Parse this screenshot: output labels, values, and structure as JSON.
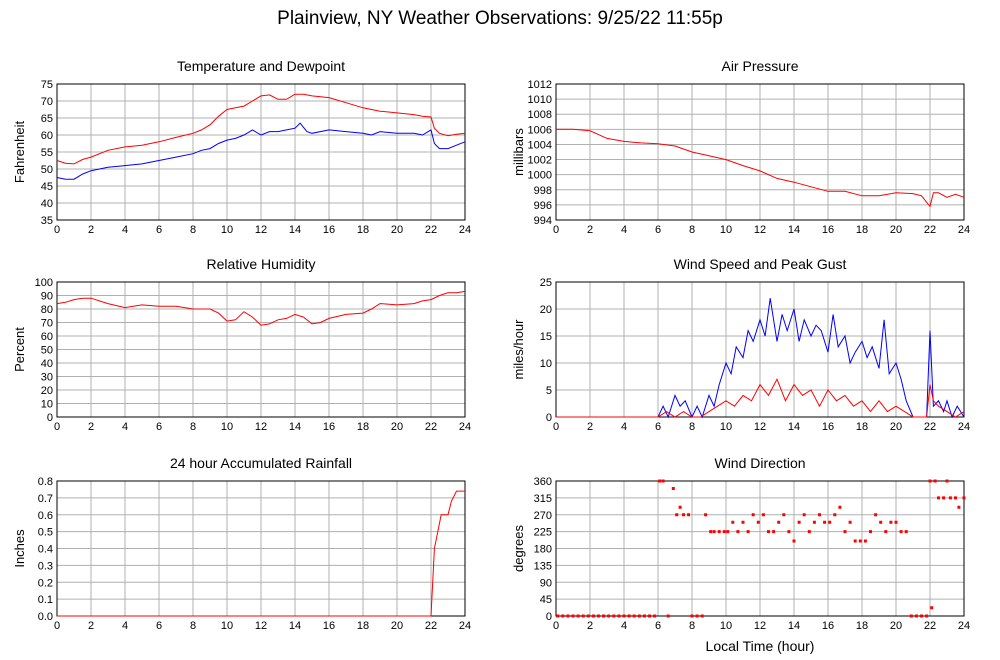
{
  "page_title": "Plainview, NY Weather Observations: 9/25/22 11:55p",
  "bottom_xlabel": "Local Time (hour)",
  "chart_data": [
    {
      "id": "temp",
      "type": "line",
      "title": "Temperature and Dewpoint",
      "ylabel": "Fahrenheit",
      "xlabel": "",
      "xlim": [
        0,
        24
      ],
      "ylim": [
        35,
        75
      ],
      "yticks": [
        35,
        40,
        45,
        50,
        55,
        60,
        65,
        70,
        75
      ],
      "xticks": [
        0,
        2,
        4,
        6,
        8,
        10,
        12,
        14,
        16,
        18,
        20,
        22,
        24
      ],
      "grid": true,
      "series": [
        {
          "color": "#ff0000",
          "x": [
            0,
            0.5,
            1,
            1.5,
            2,
            3,
            4,
            5,
            6,
            7,
            8,
            8.5,
            9,
            9.5,
            10,
            10.5,
            11,
            11.5,
            12,
            12.5,
            13,
            13.5,
            14,
            14.5,
            15,
            16,
            17,
            18,
            19,
            20,
            21,
            21.5,
            22,
            22.2,
            22.5,
            23,
            23.5,
            24
          ],
          "y": [
            52.5,
            51.7,
            51.5,
            52.8,
            53.5,
            55.5,
            56.5,
            57,
            58,
            59.3,
            60.5,
            61.5,
            63,
            65.5,
            67.5,
            68,
            68.5,
            70,
            71.5,
            71.8,
            70.5,
            70.5,
            72,
            72,
            71.5,
            71,
            69.5,
            68,
            67,
            66.5,
            66,
            65.5,
            65.3,
            62,
            60.5,
            59.8,
            60.2,
            60.5
          ]
        },
        {
          "color": "#0000ff",
          "x": [
            0,
            0.5,
            1,
            1.5,
            2,
            3,
            4,
            5,
            6,
            7,
            8,
            8.5,
            9,
            9.5,
            10,
            10.5,
            11,
            11.5,
            12,
            12.5,
            13,
            13.5,
            14,
            14.3,
            14.7,
            15,
            16,
            17,
            18,
            18.5,
            19,
            20,
            21,
            21.5,
            22,
            22.2,
            22.5,
            23,
            23.5,
            24
          ],
          "y": [
            47.5,
            47,
            47,
            48.5,
            49.5,
            50.5,
            51,
            51.5,
            52.5,
            53.5,
            54.5,
            55.5,
            56,
            57.5,
            58.5,
            59,
            60,
            61.5,
            60,
            61,
            61,
            61.5,
            62,
            63.5,
            61,
            60.5,
            61.5,
            61,
            60.5,
            60,
            61,
            60.5,
            60.5,
            60,
            61.5,
            57.5,
            56,
            56,
            57,
            58
          ]
        }
      ]
    },
    {
      "id": "pressure",
      "type": "line",
      "title": "Air Pressure",
      "ylabel": "millibars",
      "xlabel": "",
      "xlim": [
        0,
        24
      ],
      "ylim": [
        994,
        1012
      ],
      "yticks": [
        994,
        996,
        998,
        1000,
        1002,
        1004,
        1006,
        1008,
        1010,
        1012
      ],
      "xticks": [
        0,
        2,
        4,
        6,
        8,
        10,
        12,
        14,
        16,
        18,
        20,
        22,
        24
      ],
      "grid": true,
      "series": [
        {
          "color": "#ff0000",
          "x": [
            0,
            1,
            2,
            2.5,
            3,
            4,
            5,
            6,
            7,
            8,
            9,
            10,
            11,
            12,
            13,
            14,
            15,
            16,
            17,
            18,
            19,
            20,
            21,
            21.5,
            22,
            22.2,
            22.5,
            23,
            23.5,
            24
          ],
          "y": [
            1006,
            1006,
            1005.8,
            1005.3,
            1004.8,
            1004.4,
            1004.2,
            1004.1,
            1003.8,
            1003,
            1002.5,
            1002,
            1001.2,
            1000.5,
            999.5,
            999,
            998.4,
            997.8,
            997.8,
            997.2,
            997.2,
            997.6,
            997.5,
            997.2,
            995.8,
            997.6,
            997.6,
            997,
            997.4,
            997
          ]
        }
      ]
    },
    {
      "id": "humidity",
      "type": "line",
      "title": "Relative Humidity",
      "ylabel": "Percent",
      "xlabel": "",
      "xlim": [
        0,
        24
      ],
      "ylim": [
        0,
        100
      ],
      "yticks": [
        0,
        10,
        20,
        30,
        40,
        50,
        60,
        70,
        80,
        90,
        100
      ],
      "xticks": [
        0,
        2,
        4,
        6,
        8,
        10,
        12,
        14,
        16,
        18,
        20,
        22,
        24
      ],
      "grid": true,
      "series": [
        {
          "color": "#ff0000",
          "x": [
            0,
            0.5,
            1,
            1.5,
            2,
            3,
            4,
            5,
            6,
            7,
            8,
            9,
            9.5,
            10,
            10.5,
            11,
            11.5,
            12,
            12.5,
            13,
            13.5,
            14,
            14.5,
            15,
            15.5,
            16,
            17,
            18,
            18.5,
            19,
            20,
            21,
            21.5,
            22,
            22.5,
            23,
            23.5,
            24
          ],
          "y": [
            84,
            85,
            87,
            88,
            88,
            84,
            81,
            83,
            82,
            82,
            80,
            80,
            77,
            71,
            72,
            78,
            74,
            68,
            69,
            72,
            73,
            76,
            74,
            69,
            70,
            73,
            76,
            77,
            80,
            84,
            83,
            84,
            86,
            87,
            90,
            92,
            92,
            93
          ]
        }
      ]
    },
    {
      "id": "wind",
      "type": "line",
      "title": "Wind Speed and Peak Gust",
      "ylabel": "miles/hour",
      "xlabel": "",
      "xlim": [
        0,
        24
      ],
      "ylim": [
        0,
        25
      ],
      "yticks": [
        0,
        5,
        10,
        15,
        20,
        25
      ],
      "xticks": [
        0,
        2,
        4,
        6,
        8,
        10,
        12,
        14,
        16,
        18,
        20,
        22,
        24
      ],
      "grid": true,
      "series": [
        {
          "color": "#0000ff",
          "x": [
            0,
            6,
            6.3,
            6.6,
            7,
            7.3,
            7.6,
            8,
            8.3,
            8.6,
            9,
            9.3,
            9.6,
            10,
            10.3,
            10.6,
            11,
            11.3,
            11.6,
            12,
            12.3,
            12.6,
            13,
            13.3,
            13.6,
            14,
            14.3,
            14.6,
            15,
            15.3,
            15.6,
            16,
            16.3,
            16.6,
            17,
            17.3,
            17.6,
            18,
            18.3,
            18.6,
            19,
            19.3,
            19.6,
            20,
            20.3,
            20.6,
            21,
            21.8,
            22,
            22.2,
            22.5,
            22.8,
            23,
            23.3,
            23.6,
            24
          ],
          "y": [
            0,
            0,
            2,
            0,
            4,
            2,
            3,
            0,
            2,
            0,
            4,
            2,
            6,
            10,
            8,
            13,
            11,
            16,
            14,
            18,
            15,
            22,
            14,
            19,
            16,
            20,
            14,
            18,
            15,
            17,
            16,
            12,
            19,
            13,
            15,
            10,
            12,
            14,
            11,
            13,
            9,
            18,
            8,
            10,
            7,
            3,
            0,
            0,
            16,
            2,
            3,
            1,
            3,
            0,
            2,
            0
          ]
        },
        {
          "color": "#ff0000",
          "x": [
            0,
            6,
            6.5,
            7,
            7.5,
            8,
            8.5,
            9,
            9.5,
            10,
            10.5,
            11,
            11.5,
            12,
            12.5,
            13,
            13.5,
            14,
            14.5,
            15,
            15.5,
            16,
            16.5,
            17,
            17.5,
            18,
            18.5,
            19,
            19.5,
            20,
            20.5,
            21,
            21.8,
            22,
            22.2,
            22.5,
            23,
            23.5,
            24
          ],
          "y": [
            0,
            0,
            1,
            0,
            1,
            0,
            0,
            1,
            2,
            3,
            2,
            4,
            3,
            6,
            4,
            7,
            3,
            6,
            4,
            5,
            2,
            5,
            3,
            4,
            2,
            3,
            1,
            3,
            1,
            2,
            1,
            0,
            0,
            6,
            3,
            2,
            1,
            0,
            1
          ]
        }
      ]
    },
    {
      "id": "rain",
      "type": "line",
      "title": "24 hour Accumulated Rainfall",
      "ylabel": "Inches",
      "xlabel": "",
      "xlim": [
        0,
        24
      ],
      "ylim": [
        0,
        0.8
      ],
      "yticks": [
        0.0,
        0.1,
        0.2,
        0.3,
        0.4,
        0.5,
        0.6,
        0.7,
        0.8
      ],
      "xticks": [
        0,
        2,
        4,
        6,
        8,
        10,
        12,
        14,
        16,
        18,
        20,
        22,
        24
      ],
      "grid": true,
      "series": [
        {
          "color": "#ff0000",
          "x": [
            0,
            22,
            22.2,
            22.4,
            22.6,
            23,
            23.2,
            23.5,
            24
          ],
          "y": [
            0,
            0,
            0.4,
            0.5,
            0.6,
            0.6,
            0.68,
            0.74,
            0.74
          ]
        }
      ]
    },
    {
      "id": "direction",
      "type": "scatter",
      "title": "Wind Direction",
      "ylabel": "degrees",
      "xlabel": "",
      "xlim": [
        0,
        24
      ],
      "ylim": [
        0,
        360
      ],
      "yticks": [
        0,
        45,
        90,
        135,
        180,
        225,
        270,
        315,
        360
      ],
      "xticks": [
        0,
        2,
        4,
        6,
        8,
        10,
        12,
        14,
        16,
        18,
        20,
        22,
        24
      ],
      "grid": true,
      "series": [
        {
          "color": "#ff0000",
          "x": [
            0.1,
            0.4,
            0.7,
            1.0,
            1.3,
            1.6,
            1.9,
            2.2,
            2.5,
            2.8,
            3.1,
            3.4,
            3.7,
            4.0,
            4.3,
            4.6,
            4.9,
            5.2,
            5.5,
            5.8,
            6.1,
            6.3,
            6.6,
            6.9,
            7.1,
            7.3,
            7.5,
            7.8,
            8.0,
            8.3,
            8.6,
            8.8,
            9.1,
            9.3,
            9.6,
            9.9,
            10.1,
            10.4,
            10.7,
            11.0,
            11.3,
            11.6,
            11.9,
            12.2,
            12.5,
            12.8,
            13.1,
            13.4,
            13.7,
            14.0,
            14.3,
            14.6,
            14.9,
            15.2,
            15.5,
            15.8,
            16.1,
            16.4,
            16.7,
            17.0,
            17.3,
            17.6,
            17.9,
            18.2,
            18.5,
            18.8,
            19.1,
            19.4,
            19.7,
            20.0,
            20.3,
            20.6,
            20.9,
            21.2,
            21.5,
            21.8,
            22.0,
            22.1,
            22.3,
            22.5,
            22.8,
            23.0,
            23.2,
            23.5,
            23.7,
            24.0
          ],
          "y": [
            0,
            0,
            0,
            0,
            0,
            0,
            0,
            0,
            0,
            0,
            0,
            0,
            0,
            0,
            0,
            0,
            0,
            0,
            0,
            0,
            360,
            360,
            0,
            340,
            270,
            290,
            270,
            270,
            0,
            0,
            0,
            270,
            225,
            225,
            225,
            225,
            225,
            250,
            225,
            250,
            225,
            270,
            250,
            270,
            225,
            225,
            250,
            270,
            225,
            200,
            250,
            270,
            225,
            250,
            270,
            250,
            250,
            270,
            290,
            225,
            250,
            200,
            200,
            200,
            225,
            270,
            250,
            225,
            250,
            250,
            225,
            225,
            0,
            0,
            0,
            0,
            360,
            22,
            360,
            315,
            315,
            360,
            315,
            315,
            290,
            315
          ]
        }
      ]
    }
  ]
}
